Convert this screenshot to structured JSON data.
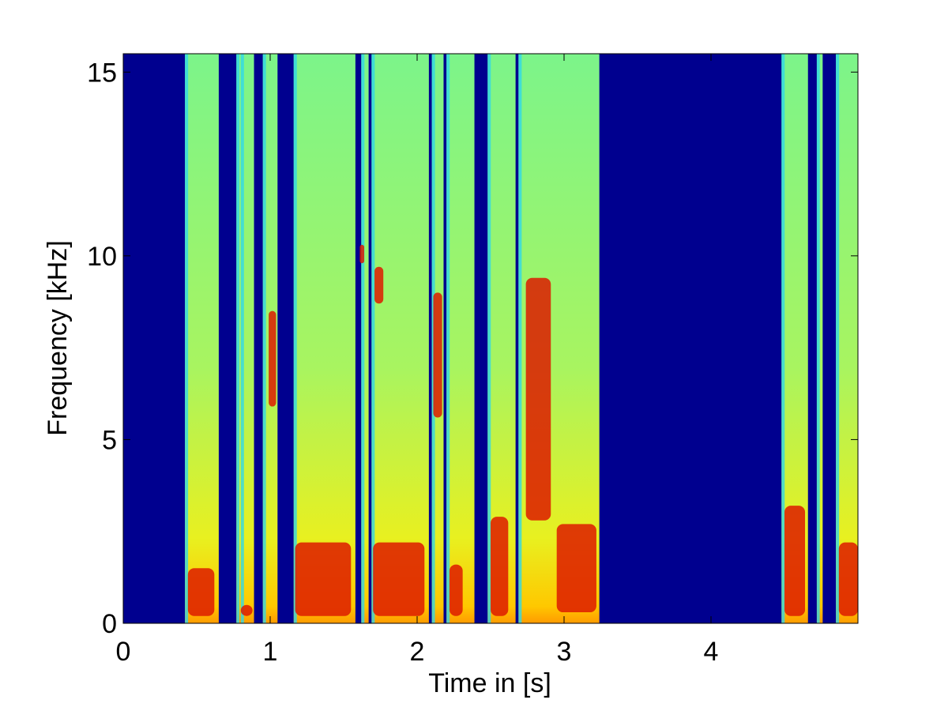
{
  "chart_data": {
    "type": "spectrogram",
    "x_label": "Time in [s]",
    "y_label": "Frequency [kHz]",
    "xlim": [
      0,
      5
    ],
    "ylim": [
      0,
      15.5
    ],
    "xticks": [
      0,
      1,
      2,
      3,
      4
    ],
    "yticks": [
      0,
      5,
      10,
      15
    ],
    "grid": false,
    "background_color": "#00008f",
    "segments": [
      [
        0.42,
        0.65
      ],
      [
        0.77,
        0.81
      ],
      [
        0.8,
        0.89
      ],
      [
        0.95,
        1.05
      ],
      [
        1.16,
        1.58
      ],
      [
        1.62,
        1.67
      ],
      [
        1.69,
        2.08
      ],
      [
        2.1,
        2.18
      ],
      [
        2.2,
        2.39
      ],
      [
        2.48,
        2.67
      ],
      [
        2.69,
        3.24
      ],
      [
        4.48,
        4.66
      ],
      [
        4.72,
        4.76
      ],
      [
        4.85,
        5.0
      ]
    ],
    "high_energy_color": "#dd1a00",
    "high_energy_regions": [
      {
        "t": [
          0.44,
          0.62
        ],
        "f": [
          0.2,
          1.5
        ]
      },
      {
        "t": [
          0.8,
          0.88
        ],
        "f": [
          0.2,
          0.5
        ]
      },
      {
        "t": [
          0.99,
          1.04
        ],
        "f": [
          5.9,
          8.5
        ]
      },
      {
        "t": [
          1.17,
          1.55
        ],
        "f": [
          0.2,
          2.2
        ]
      },
      {
        "t": [
          1.61,
          1.64
        ],
        "f": [
          9.8,
          10.3
        ]
      },
      {
        "t": [
          1.71,
          1.77
        ],
        "f": [
          8.7,
          9.7
        ]
      },
      {
        "t": [
          1.7,
          2.05
        ],
        "f": [
          0.2,
          2.2
        ]
      },
      {
        "t": [
          2.11,
          2.17
        ],
        "f": [
          5.6,
          9.0
        ]
      },
      {
        "t": [
          2.22,
          2.31
        ],
        "f": [
          0.2,
          1.6
        ]
      },
      {
        "t": [
          2.5,
          2.62
        ],
        "f": [
          0.2,
          2.9
        ]
      },
      {
        "t": [
          2.74,
          2.91
        ],
        "f": [
          2.8,
          9.4
        ]
      },
      {
        "t": [
          2.95,
          3.22
        ],
        "f": [
          0.3,
          2.7
        ]
      },
      {
        "t": [
          4.5,
          4.64
        ],
        "f": [
          0.2,
          3.2
        ]
      },
      {
        "t": [
          4.87,
          5.0
        ],
        "f": [
          0.2,
          2.2
        ]
      }
    ]
  }
}
